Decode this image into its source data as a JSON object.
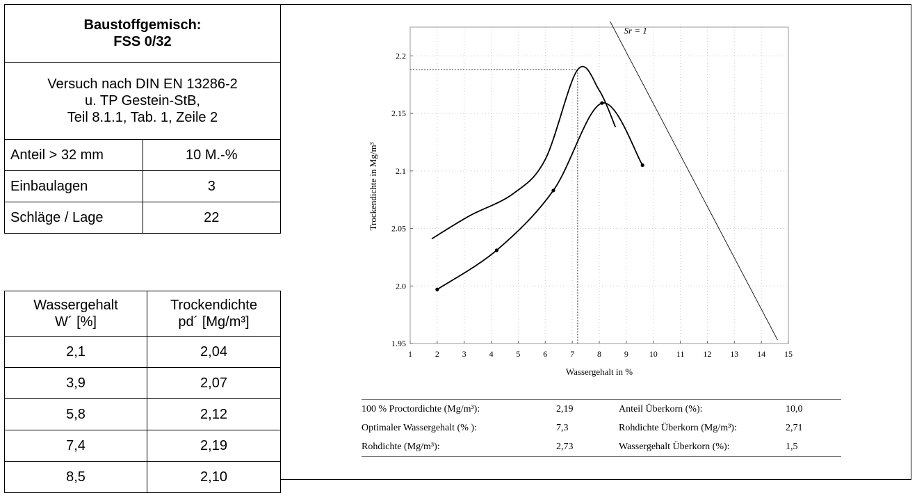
{
  "left_panel": {
    "title_line1": "Baustoffgemisch:",
    "title_line2": "FSS 0/32",
    "method_line1": "Versuch nach DIN EN 13286-2",
    "method_line2": "u. TP Gestein-StB,",
    "method_line3": "Teil 8.1.1, Tab. 1, Zeile 2",
    "props": [
      {
        "label": "Anteil > 32 mm",
        "value": "10 M.-%"
      },
      {
        "label": "Einbaulagen",
        "value": "3"
      },
      {
        "label": "Schläge / Lage",
        "value": "22"
      }
    ],
    "table_header": {
      "col1_line1": "Wassergehalt",
      "col1_line2": "W´ [%]",
      "col2_line1": "Trockendichte",
      "col2_line2": "pd´ [Mg/m³]"
    },
    "rows": [
      {
        "w": "2,1",
        "d": "2,04"
      },
      {
        "w": "3,9",
        "d": "2,07"
      },
      {
        "w": "5,8",
        "d": "2,12"
      },
      {
        "w": "7,4",
        "d": "2,19"
      },
      {
        "w": "8,5",
        "d": "2,10"
      }
    ]
  },
  "chart_data": {
    "type": "line",
    "xlabel": "Wassergehalt in %",
    "ylabel": "Trockendichte in Mg/m³",
    "xlim": [
      1,
      15
    ],
    "ylim": [
      1.95,
      2.225
    ],
    "xticks": [
      "1",
      "2",
      "3",
      "4",
      "5",
      "6",
      "7",
      "8",
      "9",
      "10",
      "11",
      "12",
      "13",
      "14",
      "15"
    ],
    "yticks": [
      "1.95",
      "2.0",
      "2.05",
      "2.1",
      "2.15",
      "2.2"
    ],
    "grid": true,
    "series": [
      {
        "values": [
          [
            2.0,
            1.997
          ],
          [
            4.2,
            2.031
          ],
          [
            6.3,
            2.083
          ],
          [
            8.1,
            2.159
          ],
          [
            9.6,
            2.105
          ]
        ],
        "markers": true
      },
      {
        "values": [
          [
            1.8,
            2.041
          ],
          [
            3.2,
            2.061
          ],
          [
            4.8,
            2.08
          ],
          [
            6.0,
            2.11
          ],
          [
            7.2,
            2.188
          ],
          [
            8.0,
            2.17
          ],
          [
            8.6,
            2.138
          ]
        ],
        "markers": false
      }
    ],
    "saturation_line": {
      "label": "Sr = 1",
      "values": [
        [
          8.4,
          2.23
        ],
        [
          14.6,
          1.953
        ]
      ]
    },
    "optimum": {
      "x": 7.2,
      "y": 2.188
    }
  },
  "params": {
    "left": [
      {
        "label": "100 % Proctordichte (Mg/m³):",
        "value": "2,19"
      },
      {
        "label": "Optimaler Wassergehalt (% ):",
        "value": "7,3"
      },
      {
        "label": "Rohdichte (Mg/m³):",
        "value": "2,73"
      }
    ],
    "right": [
      {
        "label": "Anteil Überkorn (%):",
        "value": "10,0"
      },
      {
        "label": "Rohdichte Überkorn (Mg/m³):",
        "value": "2,71"
      },
      {
        "label": "Wassergehalt Überkorn (%):",
        "value": "1,5"
      }
    ]
  }
}
